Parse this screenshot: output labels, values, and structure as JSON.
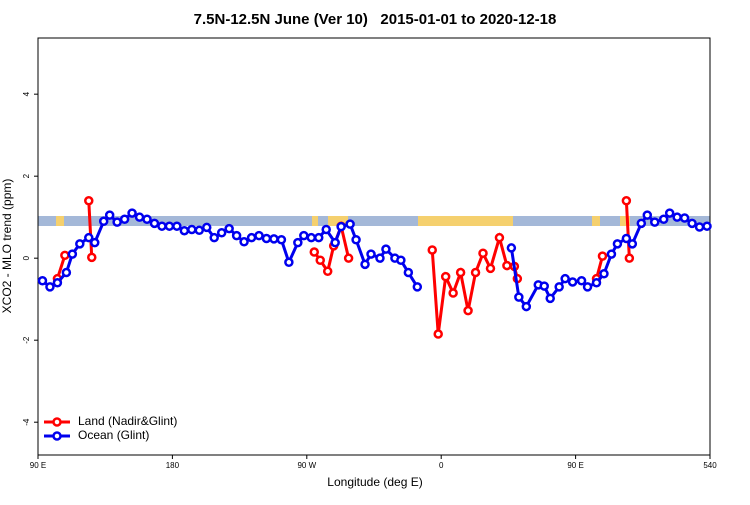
{
  "chart_data": {
    "type": "line",
    "title": "7.5N-12.5N June (Ver 10)   2015-01-01 to 2020-12-18",
    "xlabel": "Longitude (deg E)",
    "ylabel": "XCO2 - MLO trend (ppm)",
    "xlim": [
      90,
      540
    ],
    "xticks": [
      {
        "value": 90,
        "label": "90 E"
      },
      180,
      {
        "value": 270,
        "label": "90 W"
      },
      {
        "value": 360,
        "label": "0"
      },
      {
        "value": 450,
        "label": "90 E"
      },
      540
    ],
    "ylim": [
      -4.8,
      5.37
    ],
    "yticks": [
      -4,
      -2,
      0,
      2,
      4
    ],
    "legend": "bottom-left",
    "series": [
      {
        "name": "Land (Nadir&Glint)",
        "color": "#ff0000",
        "x": [
          103,
          108,
          null,
          124,
          126,
          null,
          275,
          279,
          284,
          288,
          293,
          298,
          null,
          354,
          358,
          363,
          368,
          373,
          378,
          383,
          388,
          393,
          399,
          404,
          409,
          411,
          null,
          464,
          468,
          null,
          484,
          486
        ],
        "values": [
          -0.5,
          0.07,
          null,
          1.4,
          0.02,
          null,
          0.15,
          -0.05,
          -0.32,
          0.3,
          0.78,
          0.0,
          null,
          0.2,
          -1.85,
          -0.45,
          -0.85,
          -0.35,
          -1.28,
          -0.35,
          0.12,
          -0.25,
          0.5,
          -0.18,
          -0.2,
          -0.5,
          null,
          -0.5,
          0.05,
          null,
          1.4,
          0.0
        ]
      },
      {
        "name": "Ocean (Glint)",
        "color": "#0000ee",
        "x": [
          93,
          98,
          103,
          109,
          113,
          118,
          124,
          128,
          134,
          138,
          143,
          148,
          153,
          158,
          163,
          168,
          173,
          178,
          183,
          188,
          193,
          198,
          203,
          208,
          213,
          218,
          223,
          228,
          233,
          238,
          243,
          248,
          253,
          258,
          264,
          268,
          273,
          278,
          283,
          289,
          293,
          299,
          303,
          309,
          313,
          319,
          323,
          329,
          333,
          338,
          344,
          null,
          407,
          412,
          417,
          425,
          429,
          433,
          439,
          443,
          448,
          454,
          458,
          464,
          469,
          474,
          478,
          484,
          488,
          494,
          498,
          503,
          509,
          513,
          518,
          523,
          528,
          533,
          538
        ],
        "values": [
          -0.55,
          -0.7,
          -0.6,
          -0.35,
          0.1,
          0.35,
          0.5,
          0.38,
          0.9,
          1.05,
          0.88,
          0.95,
          1.1,
          1.0,
          0.95,
          0.85,
          0.78,
          0.78,
          0.78,
          0.67,
          0.7,
          0.68,
          0.75,
          0.5,
          0.62,
          0.72,
          0.55,
          0.4,
          0.5,
          0.55,
          0.48,
          0.47,
          0.45,
          -0.1,
          0.38,
          0.55,
          0.5,
          0.5,
          0.7,
          0.38,
          0.77,
          0.83,
          0.45,
          -0.15,
          0.1,
          0.0,
          0.22,
          0.0,
          -0.05,
          -0.35,
          -0.7,
          null,
          0.25,
          -0.95,
          -1.18,
          -0.65,
          -0.68,
          -0.98,
          -0.7,
          -0.5,
          -0.58,
          -0.55,
          -0.7,
          -0.6,
          -0.38,
          0.1,
          0.35,
          0.48,
          0.35,
          0.85,
          1.05,
          0.88,
          0.95,
          1.1,
          1.0,
          0.98,
          0.85,
          0.76,
          0.78
        ]
      }
    ]
  }
}
